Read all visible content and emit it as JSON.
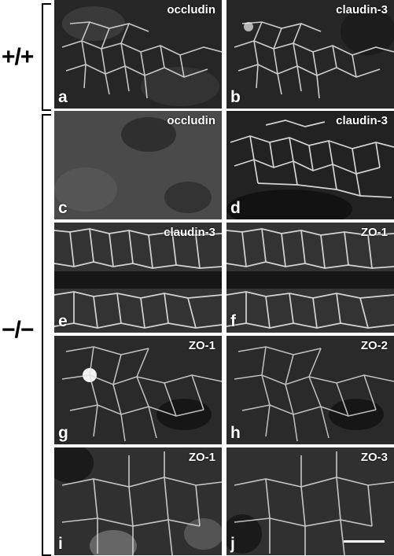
{
  "genotypes": {
    "wildtype": "+/+",
    "knockout": "−/−"
  },
  "panels": [
    {
      "letter": "a",
      "stain": "occludin"
    },
    {
      "letter": "b",
      "stain": "claudin-3"
    },
    {
      "letter": "c",
      "stain": "occludin"
    },
    {
      "letter": "d",
      "stain": "claudin-3"
    },
    {
      "letter": "e",
      "stain": "claudin-3"
    },
    {
      "letter": "f",
      "stain": "ZO-1"
    },
    {
      "letter": "g",
      "stain": "ZO-1"
    },
    {
      "letter": "h",
      "stain": "ZO-2"
    },
    {
      "letter": "i",
      "stain": "ZO-1"
    },
    {
      "letter": "j",
      "stain": "ZO-3"
    }
  ],
  "colors": {
    "background": "#ffffff",
    "panel_dark": "#1a1a1a",
    "signal": "#e6e6e6"
  }
}
